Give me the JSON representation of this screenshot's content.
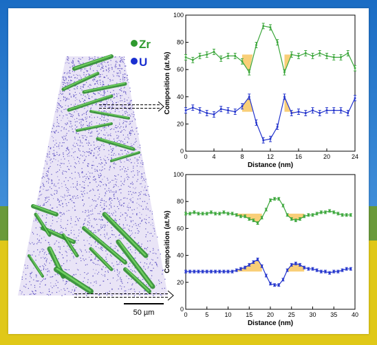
{
  "legend": {
    "zr_label": "Zr",
    "u_label": "U",
    "zr_color": "#2e9a2e",
    "u_color": "#1a2fd0"
  },
  "scalebar": {
    "label": "50 µm"
  },
  "colors": {
    "zr_line": "#3aa63a",
    "u_line": "#2233cc",
    "highlight": "#f8c760",
    "sky_top": "#1a6cc4",
    "sky_bottom": "#5aa5e6",
    "field": "#e0c818"
  },
  "chart_data": [
    {
      "type": "line",
      "xlabel": "Distance (nm)",
      "ylabel": "Composition (at.%)",
      "xlim": [
        0,
        24
      ],
      "ylim": [
        0,
        100
      ],
      "xticks": [
        0,
        4,
        8,
        12,
        16,
        20,
        24
      ],
      "yticks": [
        0,
        20,
        40,
        60,
        80,
        100
      ],
      "series": [
        {
          "name": "Zr",
          "x": [
            0,
            1,
            2,
            3,
            4,
            5,
            6,
            7,
            8,
            9,
            10,
            11,
            12,
            13,
            14,
            15,
            16,
            17,
            18,
            19,
            20,
            21,
            22,
            23,
            24
          ],
          "y": [
            69,
            67,
            70,
            71,
            73,
            68,
            70,
            70,
            66,
            58,
            78,
            92,
            91,
            80,
            58,
            71,
            70,
            72,
            70,
            72,
            70,
            69,
            69,
            72,
            61
          ],
          "err": [
            2,
            2,
            2,
            2,
            2,
            2,
            2,
            2,
            2,
            2,
            2,
            2,
            2,
            2,
            2,
            2,
            2,
            2,
            2,
            2,
            2,
            2,
            2,
            2,
            2
          ]
        },
        {
          "name": "U",
          "x": [
            0,
            1,
            2,
            3,
            4,
            5,
            6,
            7,
            8,
            9,
            10,
            11,
            12,
            13,
            14,
            15,
            16,
            17,
            18,
            19,
            20,
            21,
            22,
            23,
            24
          ],
          "y": [
            30,
            32,
            30,
            28,
            27,
            31,
            30,
            29,
            33,
            40,
            21,
            8,
            9,
            18,
            40,
            28,
            29,
            28,
            30,
            28,
            30,
            30,
            30,
            28,
            39
          ],
          "err": [
            2,
            2,
            2,
            2,
            2,
            2,
            2,
            2,
            2,
            2,
            2,
            2,
            2,
            2,
            2,
            2,
            2,
            2,
            2,
            2,
            2,
            2,
            2,
            2,
            2
          ]
        }
      ],
      "highlights": [
        {
          "series": "Zr",
          "x0": 8,
          "x1": 9.5,
          "y": 71
        },
        {
          "series": "Zr",
          "x0": 14,
          "x1": 15.5,
          "y": 71
        },
        {
          "series": "U",
          "x0": 8,
          "x1": 9.5,
          "y": 29
        },
        {
          "series": "U",
          "x0": 14,
          "x1": 15.5,
          "y": 29
        }
      ]
    },
    {
      "type": "line",
      "xlabel": "Distance (nm)",
      "ylabel": "Composition (at.%)",
      "xlim": [
        0,
        40
      ],
      "ylim": [
        0,
        100
      ],
      "xticks": [
        0,
        5,
        10,
        15,
        20,
        25,
        30,
        35,
        40
      ],
      "yticks": [
        0,
        20,
        40,
        60,
        80,
        100
      ],
      "series": [
        {
          "name": "Zr",
          "x": [
            0,
            1,
            2,
            3,
            4,
            5,
            6,
            7,
            8,
            9,
            10,
            11,
            12,
            13,
            14,
            15,
            16,
            17,
            18,
            19,
            20,
            21,
            22,
            23,
            24,
            25,
            26,
            27,
            28,
            29,
            30,
            31,
            32,
            33,
            34,
            35,
            36,
            37,
            38,
            39
          ],
          "y": [
            71,
            71,
            72,
            71,
            71,
            71,
            72,
            71,
            71,
            72,
            71,
            71,
            70,
            69,
            69,
            67,
            66,
            64,
            68,
            74,
            81,
            82,
            82,
            77,
            70,
            67,
            66,
            67,
            69,
            70,
            70,
            71,
            72,
            72,
            73,
            72,
            71,
            70,
            70,
            70
          ],
          "err": [
            1,
            1,
            1,
            1,
            1,
            1,
            1,
            1,
            1,
            1,
            1,
            1,
            1,
            1,
            1,
            1,
            1,
            1,
            1,
            1,
            1,
            1,
            1,
            1,
            1,
            1,
            1,
            1,
            1,
            1,
            1,
            1,
            1,
            1,
            1,
            1,
            1,
            1,
            1,
            1
          ]
        },
        {
          "name": "U",
          "x": [
            0,
            1,
            2,
            3,
            4,
            5,
            6,
            7,
            8,
            9,
            10,
            11,
            12,
            13,
            14,
            15,
            16,
            17,
            18,
            19,
            20,
            21,
            22,
            23,
            24,
            25,
            26,
            27,
            28,
            29,
            30,
            31,
            32,
            33,
            34,
            35,
            36,
            37,
            38,
            39
          ],
          "y": [
            28,
            28,
            28,
            28,
            28,
            28,
            28,
            28,
            28,
            28,
            28,
            28,
            29,
            30,
            31,
            33,
            35,
            37,
            32,
            25,
            19,
            18,
            18,
            22,
            29,
            33,
            34,
            33,
            31,
            30,
            30,
            29,
            28,
            28,
            27,
            28,
            28,
            29,
            30,
            30
          ],
          "err": [
            1,
            1,
            1,
            1,
            1,
            1,
            1,
            1,
            1,
            1,
            1,
            1,
            1,
            1,
            1,
            1,
            1,
            1,
            1,
            1,
            1,
            1,
            1,
            1,
            1,
            1,
            1,
            1,
            1,
            1,
            1,
            1,
            1,
            1,
            1,
            1,
            1,
            1,
            1,
            1
          ]
        }
      ],
      "highlights": [
        {
          "series": "Zr",
          "x0": 12,
          "x1": 18,
          "y": 71
        },
        {
          "series": "Zr",
          "x0": 24,
          "x1": 28,
          "y": 71
        },
        {
          "series": "U",
          "x0": 12,
          "x1": 18,
          "y": 28
        },
        {
          "series": "U",
          "x0": 24,
          "x1": 28,
          "y": 28
        }
      ]
    }
  ]
}
